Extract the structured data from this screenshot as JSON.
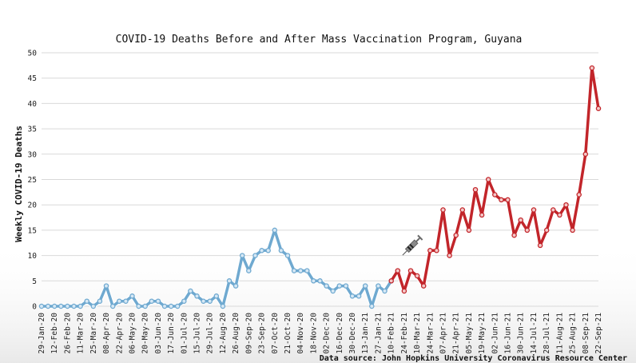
{
  "colors": {
    "before": "#6fa9d0",
    "before_point_fill": "#d6e8f5",
    "after": "#c2252a",
    "after_point_fill": "#f4c9c9",
    "grid": "#d9d9d9",
    "syringe": "#7a7a7a"
  },
  "icons": {
    "vaccine": "syringe-icon"
  },
  "source_text": "Data source: John Hopkins University Coronavirus Resource Center",
  "chart_data": {
    "type": "line",
    "title": "COVID-19 Deaths Before and After Mass Vaccination Program, Guyana",
    "ylabel": "Weekly COVID-19 Deaths",
    "xlabel": "",
    "ylim": [
      0,
      50
    ],
    "yticks": [
      0,
      5,
      10,
      15,
      20,
      25,
      30,
      35,
      40,
      45,
      50
    ],
    "grid": "horizontal",
    "x_tick_labels": [
      "29-Jan-20",
      "12-Feb-20",
      "26-Feb-20",
      "11-Mar-20",
      "25-Mar-20",
      "08-Apr-20",
      "22-Apr-20",
      "06-May-20",
      "20-May-20",
      "03-Jun-20",
      "17-Jun-20",
      "01-Jul-20",
      "15-Jul-20",
      "29-Jul-20",
      "12-Aug-20",
      "26-Aug-20",
      "09-Sep-20",
      "23-Sep-20",
      "07-Oct-20",
      "21-Oct-20",
      "04-Nov-20",
      "18-Nov-20",
      "02-Dec-20",
      "16-Dec-20",
      "30-Dec-20",
      "13-Jan-21",
      "27-Jan-21",
      "10-Feb-21",
      "24-Feb-21",
      "10-Mar-21",
      "24-Mar-21",
      "07-Apr-21",
      "21-Apr-21",
      "05-May-21",
      "19-May-21",
      "02-Jun-21",
      "16-Jun-21",
      "30-Jun-21",
      "14-Jul-21",
      "28-Jul-21",
      "11-Aug-21",
      "25-Aug-21",
      "08-Sep-21",
      "22-Sep-21"
    ],
    "series": [
      {
        "segment": "before",
        "values": [
          0,
          0,
          0,
          0,
          0,
          0,
          0,
          1,
          0,
          1,
          4,
          0,
          1,
          1,
          2,
          0,
          0,
          1,
          1,
          0,
          0,
          0,
          1,
          3,
          2,
          1,
          1,
          2,
          0,
          5,
          4,
          10,
          7,
          10,
          11,
          11,
          15,
          11,
          10,
          7,
          7,
          7,
          5,
          5,
          4,
          3,
          4,
          4,
          2,
          2,
          4,
          0,
          4,
          3,
          5
        ]
      },
      {
        "segment": "after",
        "values": [
          5,
          7,
          3,
          7,
          6,
          4,
          11,
          11,
          19,
          10,
          14,
          19,
          15,
          23,
          18,
          25,
          22,
          21,
          21,
          14,
          17,
          15,
          19,
          12,
          15,
          19,
          18,
          20,
          15,
          22,
          30,
          47,
          39
        ]
      }
    ]
  }
}
